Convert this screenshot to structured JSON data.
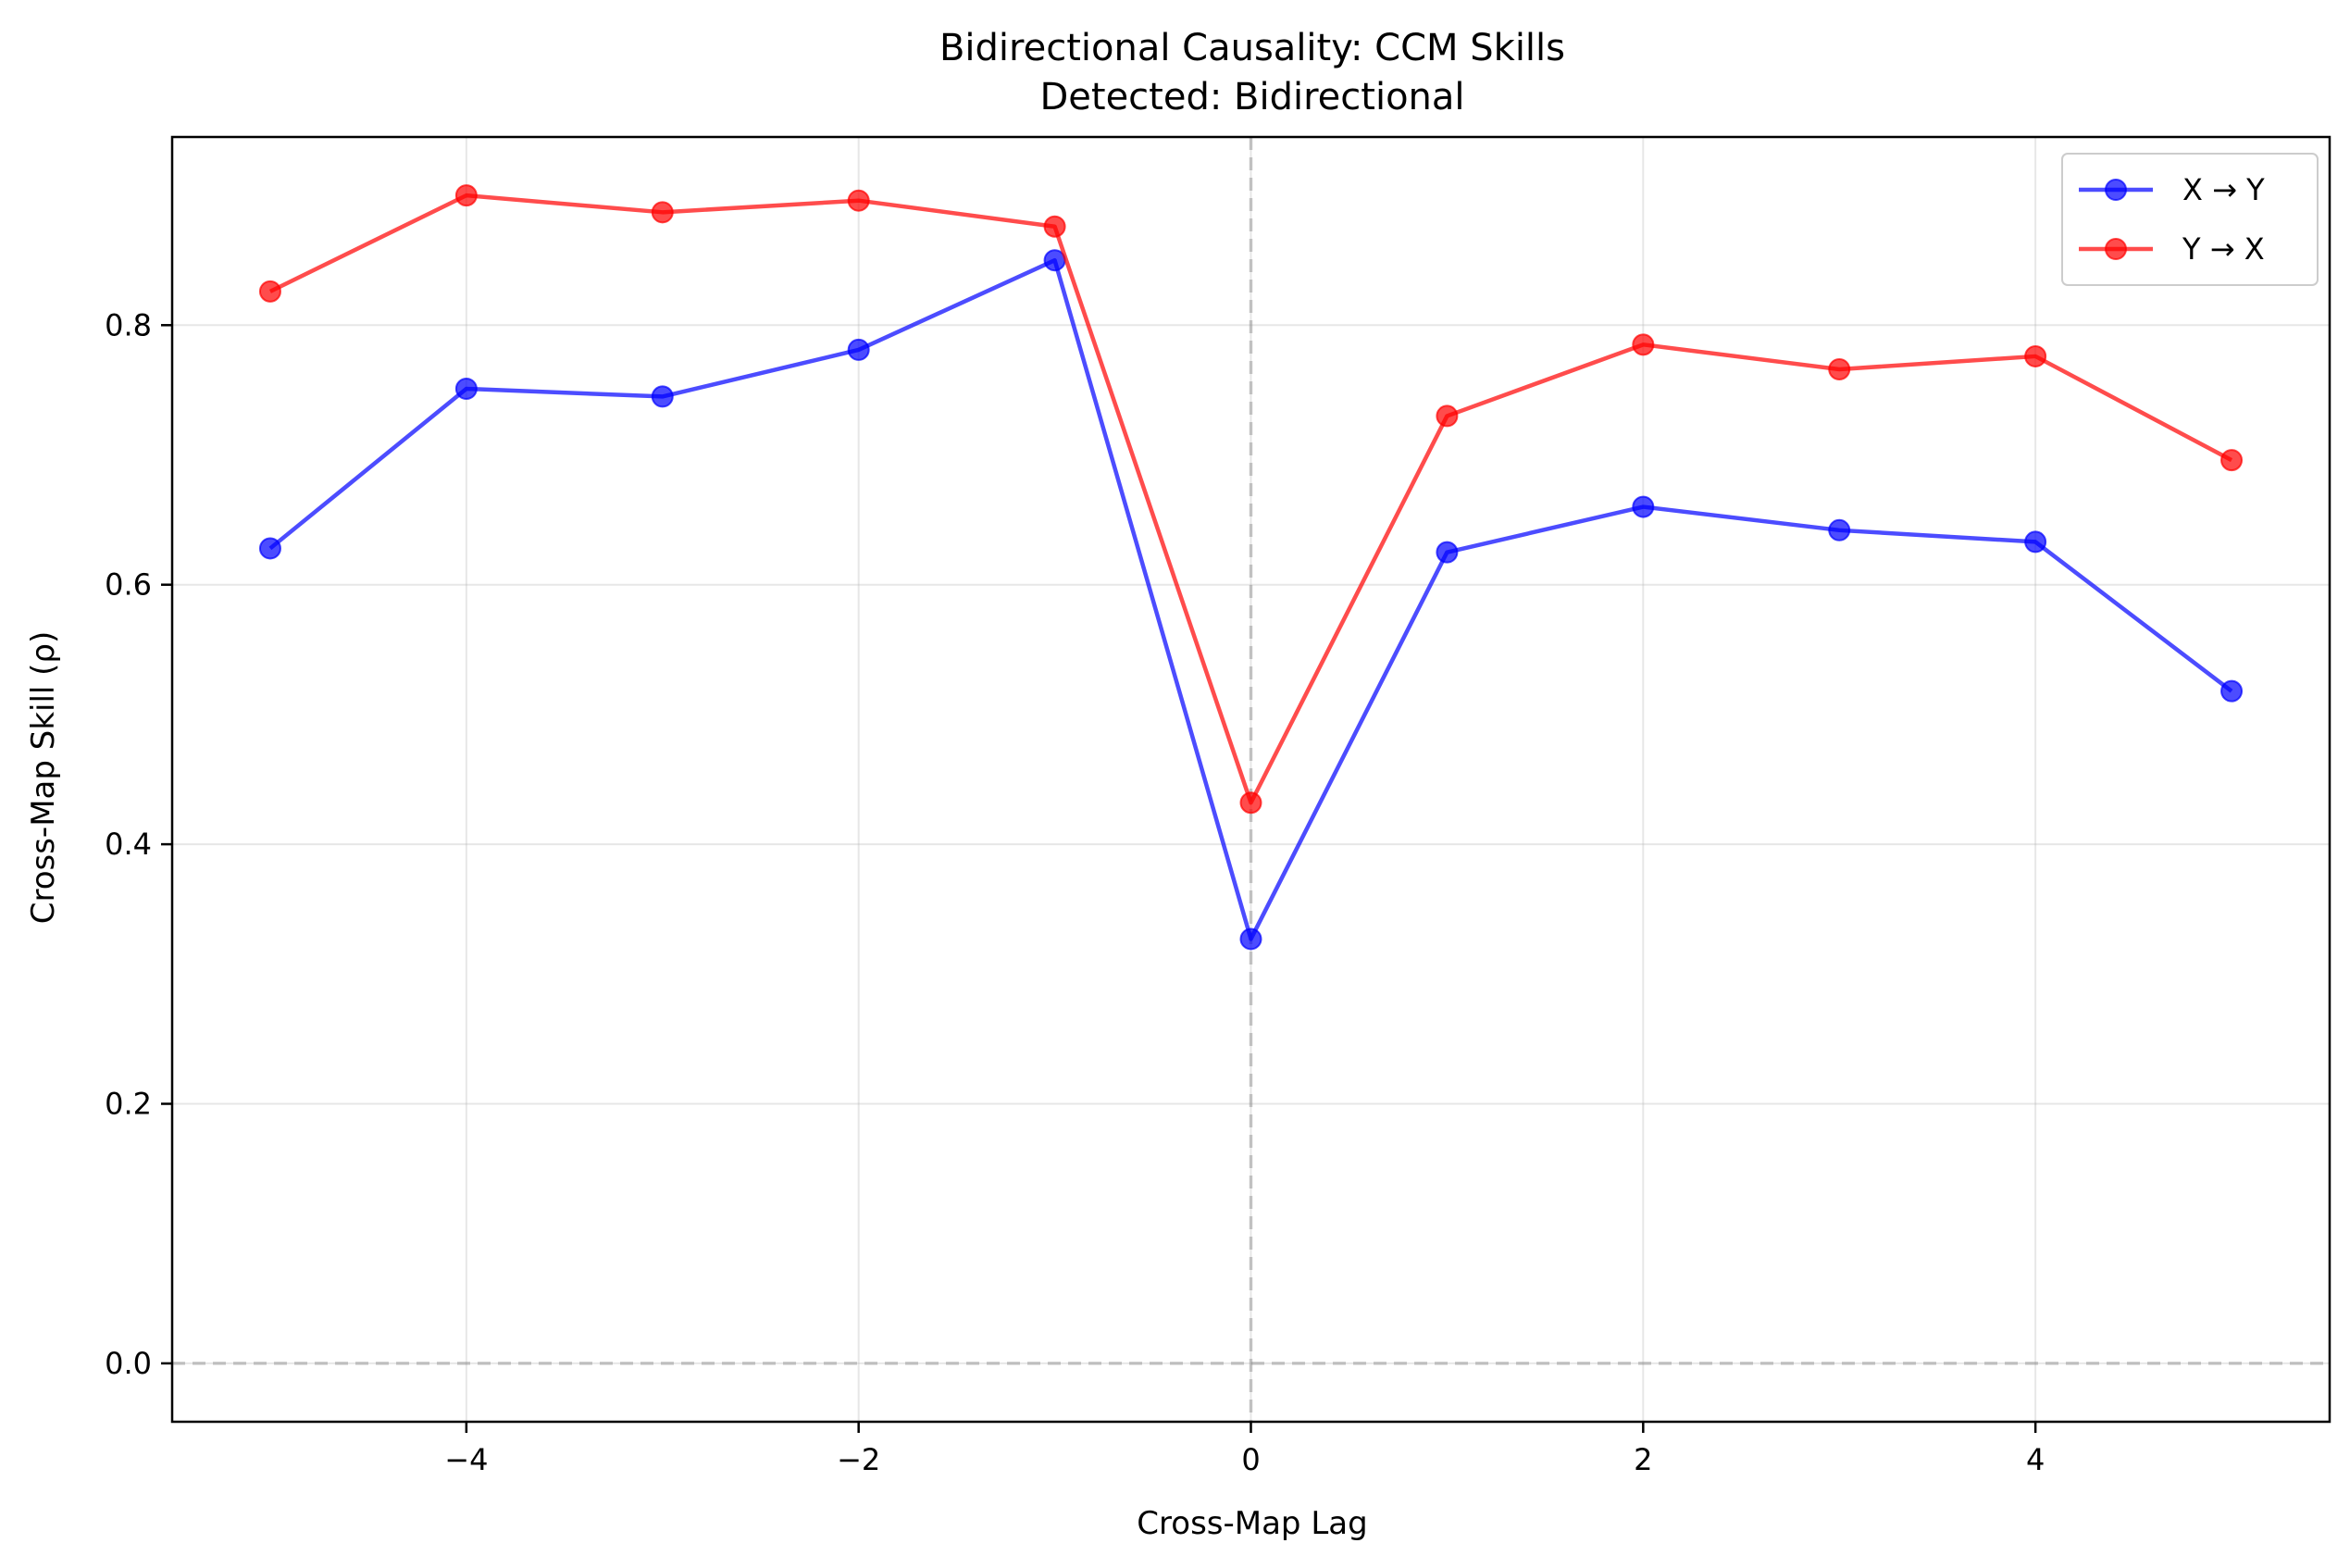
{
  "chart_data": {
    "type": "line",
    "title": "Bidirectional Causality: CCM Skills",
    "subtitle": "Detected: Bidirectional",
    "xlabel": "Cross-Map Lag",
    "ylabel": "Cross-Map Skill (ρ)",
    "xlim": [
      -5.5,
      5.5
    ],
    "ylim": [
      -0.045,
      0.945
    ],
    "x_ticks": [
      -4,
      -2,
      0,
      2,
      4
    ],
    "x_tick_labels": [
      "−4",
      "−2",
      "0",
      "2",
      "4"
    ],
    "y_ticks": [
      0.0,
      0.2,
      0.4,
      0.6,
      0.8
    ],
    "y_tick_labels": [
      "0.0",
      "0.2",
      "0.4",
      "0.6",
      "0.8"
    ],
    "grid": true,
    "legend_position": "top-right",
    "reference_lines": [
      {
        "orientation": "vertical",
        "value": 0,
        "style": "dashed",
        "color": "#7f7f7f"
      },
      {
        "orientation": "horizontal",
        "value": 0,
        "style": "dashed",
        "color": "#7f7f7f"
      }
    ],
    "x": [
      -5,
      -4,
      -3,
      -2,
      -1,
      0,
      1,
      2,
      3,
      4,
      5
    ],
    "series": [
      {
        "name": "X → Y",
        "color": "#0000ff",
        "marker": "circle",
        "values": [
          0.628,
          0.751,
          0.745,
          0.781,
          0.85,
          0.327,
          0.625,
          0.66,
          0.642,
          0.633,
          0.518
        ]
      },
      {
        "name": "Y → X",
        "color": "#ff0000",
        "marker": "circle",
        "values": [
          0.826,
          0.9,
          0.887,
          0.896,
          0.876,
          0.432,
          0.73,
          0.785,
          0.766,
          0.776,
          0.696
        ]
      }
    ]
  }
}
